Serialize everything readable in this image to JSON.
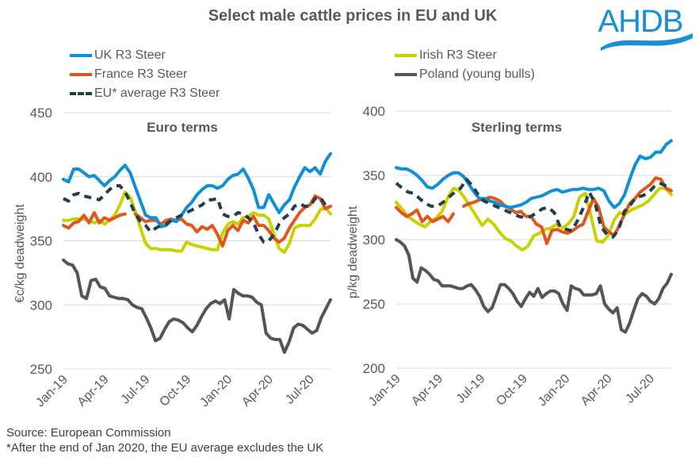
{
  "title": "Select male cattle prices in EU and UK",
  "logo_text": "AHDB",
  "legend": [
    {
      "name": "UK R3 Steer",
      "color": "#0f8fd6",
      "style": "solid"
    },
    {
      "name": "France R3 Steer",
      "color": "#e0561b",
      "style": "solid"
    },
    {
      "name": "EU* average R3 Steer",
      "color": "#203f4d",
      "style": "dashed"
    },
    {
      "name": "Irish R3 Steer",
      "color": "#c8d200",
      "style": "solid"
    },
    {
      "name": "Poland (young bulls)",
      "color": "#555555",
      "style": "solid"
    }
  ],
  "footer": {
    "source": "Source: European Commission",
    "note": "*After the end of Jan 2020, the EU average excludes the UK"
  },
  "chart_data": [
    {
      "type": "line",
      "title": "Euro terms",
      "xlabel": "",
      "ylabel": "€c/kg deadweight",
      "ylim": [
        250,
        450
      ],
      "yticks": [
        250,
        300,
        350,
        400,
        450
      ],
      "xticks": [
        "Jan-19",
        "Apr-19",
        "Jul-19",
        "Oct-19",
        "Jan-20",
        "Apr-20",
        "Jul-20"
      ],
      "x_range": [
        "2019-01",
        "2020-08"
      ],
      "grid": true,
      "series": [
        {
          "name": "UK R3 Steer",
          "values": [
            398,
            396,
            406,
            406,
            403,
            400,
            401,
            397,
            393,
            397,
            400,
            405,
            409,
            403,
            392,
            381,
            370,
            368,
            368,
            361,
            362,
            366,
            365,
            370,
            376,
            380,
            386,
            390,
            393,
            393,
            391,
            393,
            398,
            401,
            402,
            406,
            399,
            390,
            376,
            376,
            386,
            379,
            372,
            378,
            382,
            392,
            400,
            407,
            404,
            407,
            402,
            412,
            418
          ]
        },
        {
          "name": "France R3 Steer",
          "values": [
            362,
            360,
            364,
            365,
            370,
            364,
            372,
            364,
            368,
            366,
            368,
            370,
            371,
            null,
            371,
            368,
            365,
            366,
            366,
            363,
            366,
            367,
            366,
            367,
            363,
            362,
            357,
            361,
            359,
            362,
            355,
            346,
            358,
            362,
            358,
            366,
            364,
            369,
            362,
            362,
            358,
            352,
            349,
            352,
            360,
            366,
            372,
            376,
            378,
            385,
            383,
            375,
            377
          ]
        },
        {
          "name": "EU* average R3 Steer",
          "values": [
            383,
            381,
            386,
            387,
            385,
            384,
            383,
            382,
            386,
            390,
            393,
            393,
            388,
            380,
            371,
            365,
            362,
            357,
            360,
            362,
            363,
            366,
            368,
            370,
            372,
            374,
            376,
            378,
            382,
            382,
            383,
            371,
            369,
            369,
            372,
            371,
            368,
            364,
            355,
            349,
            350,
            355,
            363,
            368,
            371,
            377,
            379,
            377,
            377,
            383,
            384,
            378,
            378
          ]
        },
        {
          "name": "Irish R3 Steer",
          "values": [
            366,
            366,
            367,
            367,
            367,
            366,
            364,
            366,
            363,
            366,
            370,
            378,
            388,
            384,
            373,
            360,
            348,
            344,
            344,
            343,
            343,
            343,
            342,
            342,
            349,
            347,
            346,
            345,
            344,
            343,
            343,
            356,
            363,
            365,
            363,
            368,
            369,
            372,
            370,
            370,
            367,
            355,
            344,
            341,
            348,
            360,
            362,
            362,
            362,
            367,
            374,
            376,
            371
          ]
        },
        {
          "name": "Poland (young bulls)",
          "values": [
            335,
            332,
            331,
            325,
            307,
            305,
            319,
            320,
            314,
            313,
            307,
            306,
            305,
            305,
            304,
            300,
            298,
            297,
            290,
            282,
            272,
            274,
            281,
            287,
            289,
            288,
            286,
            282,
            279,
            284,
            291,
            297,
            301,
            303,
            301,
            304,
            289,
            312,
            309,
            307,
            307,
            306,
            302,
            300,
            278,
            274,
            273,
            273,
            263,
            271,
            282,
            285,
            284,
            281,
            278,
            280,
            290,
            297,
            304
          ]
        }
      ]
    },
    {
      "type": "line",
      "title": "Sterling terms",
      "xlabel": "",
      "ylabel": "p/kg deadweight",
      "ylim": [
        200,
        400
      ],
      "yticks": [
        200,
        250,
        300,
        350,
        400
      ],
      "xticks": [
        "Jan-19",
        "Apr-19",
        "Jul-19",
        "Oct-19",
        "Jan-20",
        "Apr-20",
        "Jul-20"
      ],
      "x_range": [
        "2019-01",
        "2020-08"
      ],
      "grid": true,
      "series": [
        {
          "name": "UK R3 Steer",
          "values": [
            356,
            355,
            355,
            353,
            350,
            346,
            341,
            340,
            343,
            347,
            350,
            352,
            352,
            349,
            343,
            337,
            332,
            332,
            330,
            329,
            327,
            326,
            325,
            326,
            327,
            329,
            332,
            333,
            334,
            336,
            338,
            339,
            337,
            338,
            339,
            339,
            340,
            339,
            339,
            340,
            338,
            330,
            325,
            328,
            335,
            347,
            358,
            365,
            363,
            364,
            368,
            368,
            374,
            377
          ]
        },
        {
          "name": "France R3 Steer",
          "values": [
            325,
            321,
            318,
            320,
            323,
            314,
            318,
            314,
            316,
            318,
            314,
            320,
            null,
            326,
            328,
            329,
            331,
            331,
            333,
            332,
            330,
            326,
            324,
            321,
            322,
            318,
            318,
            312,
            310,
            297,
            307,
            308,
            306,
            305,
            307,
            310,
            312,
            322,
            332,
            325,
            310,
            306,
            303,
            311,
            320,
            328,
            332,
            337,
            340,
            343,
            348,
            347,
            340,
            338
          ]
        },
        {
          "name": "EU* average R3 Steer",
          "values": [
            344,
            340,
            337,
            336,
            332,
            328,
            326,
            326,
            329,
            333,
            337,
            340,
            347,
            342,
            335,
            330,
            328,
            326,
            324,
            322,
            320,
            318,
            317,
            318,
            321,
            324,
            325,
            321,
            310,
            308,
            307,
            315,
            325,
            337,
            328,
            310,
            304,
            302,
            308,
            322,
            327,
            333,
            334,
            336,
            341,
            344,
            342,
            340
          ]
        },
        {
          "name": "Irish R3 Steer",
          "values": [
            329,
            324,
            318,
            315,
            312,
            310,
            314,
            317,
            322,
            333,
            340,
            338,
            332,
            325,
            318,
            311,
            316,
            312,
            306,
            301,
            299,
            295,
            292,
            295,
            303,
            305,
            308,
            309,
            312,
            309,
            312,
            318,
            333,
            336,
            318,
            299,
            298,
            303,
            315,
            321,
            320,
            323,
            325,
            327,
            330,
            335,
            340,
            340,
            335
          ]
        },
        {
          "name": "Poland (young bulls)",
          "values": [
            300,
            298,
            295,
            288,
            270,
            267,
            278,
            276,
            273,
            269,
            268,
            264,
            264,
            264,
            263,
            262,
            262,
            264,
            265,
            261,
            256,
            248,
            244,
            247,
            256,
            265,
            265,
            262,
            258,
            252,
            248,
            254,
            259,
            256,
            262,
            255,
            258,
            260,
            260,
            258,
            250,
            245,
            264,
            262,
            261,
            257,
            257,
            257,
            258,
            264,
            250,
            246,
            243,
            247,
            230,
            228,
            235,
            245,
            254,
            258,
            256,
            252,
            250,
            254,
            262,
            266,
            273
          ]
        }
      ]
    }
  ]
}
